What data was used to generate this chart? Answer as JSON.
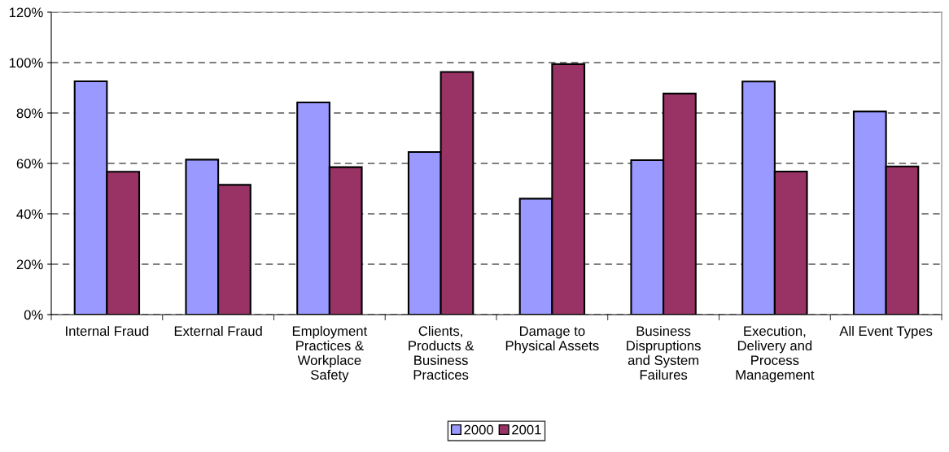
{
  "chart_data": {
    "type": "bar",
    "categories": [
      "Internal Fraud",
      "External Fraud",
      "Employment\nPractices &\nWorkplace\nSafety",
      "Clients,\nProducts &\nBusiness\nPractices",
      "Damage to\nPhysical Assets",
      "Business\nDispruptions\nand System\nFailures",
      "Execution,\nDelivery and\nProcess\nManagement",
      "All Event Types"
    ],
    "series": [
      {
        "name": "2000",
        "color": "#9999ff",
        "values": [
          92.6,
          61.5,
          84.2,
          64.5,
          46.0,
          61.3,
          92.5,
          80.6
        ]
      },
      {
        "name": "2001",
        "color": "#993366",
        "values": [
          56.7,
          51.5,
          58.5,
          96.3,
          99.4,
          87.7,
          56.8,
          58.8
        ]
      }
    ],
    "ylim": [
      0,
      120
    ],
    "yticks": [
      {
        "value": 0,
        "label": "0%"
      },
      {
        "value": 20,
        "label": "20%"
      },
      {
        "value": 40,
        "label": "40%"
      },
      {
        "value": 60,
        "label": "60%"
      },
      {
        "value": 80,
        "label": "80%"
      },
      {
        "value": 100,
        "label": "100%"
      },
      {
        "value": 120,
        "label": "120%"
      }
    ],
    "grid": "y",
    "legend": "bottom"
  }
}
